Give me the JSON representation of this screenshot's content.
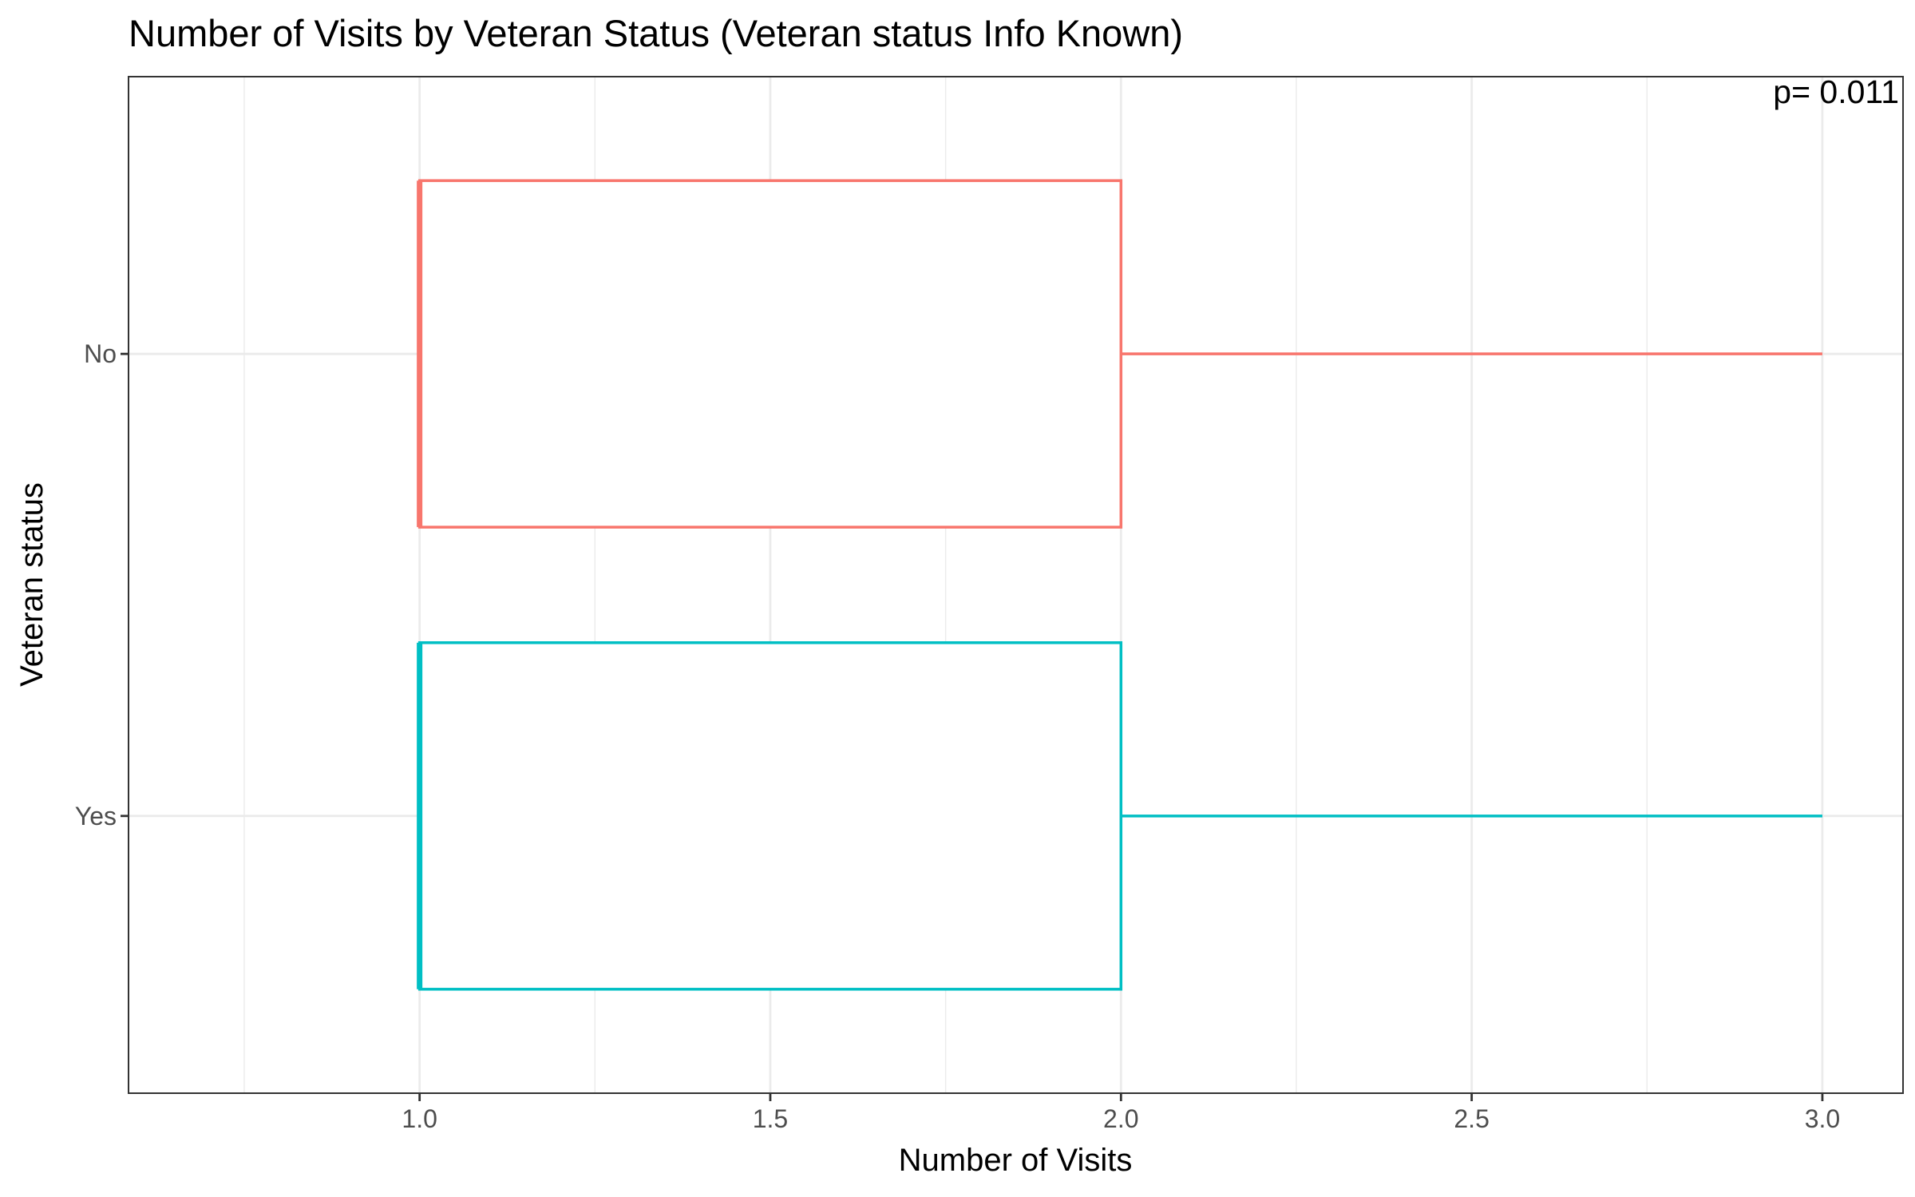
{
  "chart_data": {
    "type": "boxplot",
    "orientation": "horizontal",
    "title": "Number of Visits by Veteran Status (Veteran status Info Known)",
    "xlabel": "Number of Visits",
    "ylabel": "Veteran status",
    "xlim": [
      0.585,
      3.115
    ],
    "x_ticks": [
      1.0,
      1.5,
      2.0,
      2.5,
      3.0
    ],
    "x_tick_labels": [
      "1.0",
      "1.5",
      "2.0",
      "2.5",
      "3.0"
    ],
    "categories": [
      "No",
      "Yes"
    ],
    "series": [
      {
        "category": "No",
        "color": "#F8766D",
        "min": 1,
        "q1": 1,
        "median": 1,
        "q3": 2,
        "max": 3
      },
      {
        "category": "Yes",
        "color": "#00BFC4",
        "min": 1,
        "q1": 1,
        "median": 1,
        "q3": 2,
        "max": 3
      }
    ],
    "annotation": "p= 0.011",
    "grid": true,
    "legend": "none",
    "theme": "bw"
  }
}
